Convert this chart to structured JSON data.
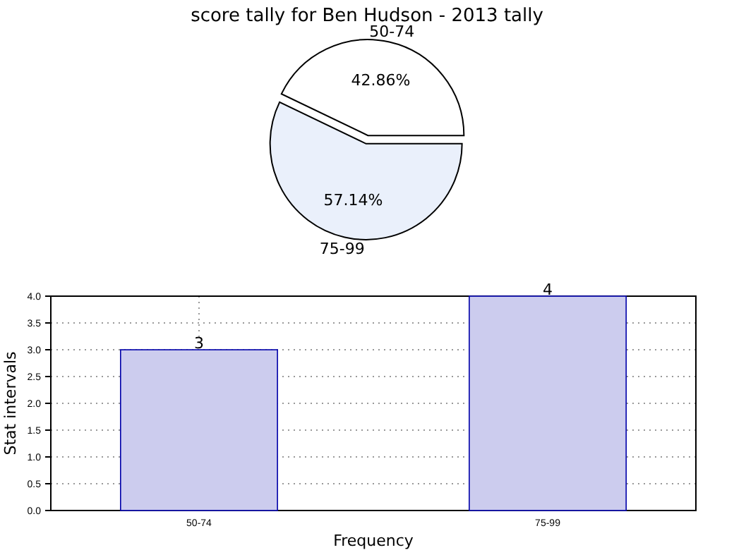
{
  "chart_data": [
    {
      "type": "pie",
      "title": "score tally for Ben Hudson - 2013 tally",
      "categories": [
        "50-74",
        "75-99"
      ],
      "values": [
        42.86,
        57.14
      ],
      "colors": [
        "#ffffff",
        "#eaf0fb"
      ],
      "value_labels": [
        "42.86%",
        "57.14%"
      ]
    },
    {
      "type": "bar",
      "categories": [
        "50-74",
        "75-99"
      ],
      "values": [
        3,
        4
      ],
      "color": "#ccccee",
      "xlabel": "Frequency",
      "ylabel": "Stat intervals",
      "ylim": [
        0,
        4
      ],
      "yticks": [
        {
          "value": 0,
          "label": "0.0"
        },
        {
          "value": 0.5,
          "label": "0.5"
        },
        {
          "value": 1,
          "label": "1.0"
        },
        {
          "value": 1.5,
          "label": "1.5"
        },
        {
          "value": 2,
          "label": "2.0"
        },
        {
          "value": 2.5,
          "label": "2.5"
        },
        {
          "value": 3,
          "label": "3.0"
        },
        {
          "value": 3.5,
          "label": "3.5"
        },
        {
          "value": 4,
          "label": "4.0"
        }
      ],
      "grid": true,
      "data_labels": true
    }
  ]
}
